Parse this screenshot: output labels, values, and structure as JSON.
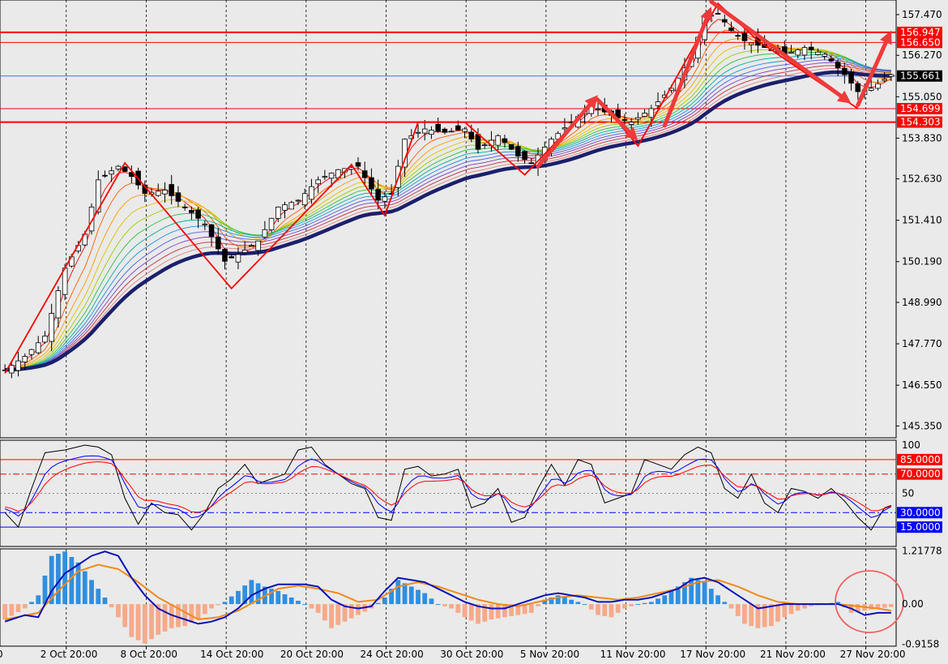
{
  "colors": {
    "background": "#eaeaea",
    "grid": "#000000",
    "candle_up": "#ffffff",
    "candle_down": "#000000",
    "support_resistance": "#ff0000",
    "current_price_line": "#4a6fd8",
    "slow_ma": "#1c1f6b",
    "zigzag": "#ff0000",
    "arrow": "#f03a3a",
    "rsi_black": "#000000",
    "rsi_blue": "#0000ff",
    "rsi_red": "#ff0000",
    "macd_hist_pos": "#2f8fe0",
    "macd_hist_neg": "#f7a98a",
    "macd_line": "#0b12b8",
    "signal_line": "#f08a1a",
    "circle": "#f06060",
    "label_red_bg": "#ff0000",
    "label_blue_bg": "#0000ff",
    "label_black_bg": "#000000"
  },
  "chart_data": [
    {
      "type": "candlestick",
      "title": "",
      "x_tick_labels": [
        "2 Oct 20:00",
        "8 Oct 20:00",
        "14 Oct 20:00",
        "20 Oct 20:00",
        "24 Oct 20:00",
        "30 Oct 20:00",
        "5 Nov 20:00",
        "11 Nov 20:00",
        "17 Nov 20:00",
        "21 Nov 20:00",
        "27 Nov 20:00"
      ],
      "x_tick_index": [
        8,
        20,
        32,
        44,
        56,
        68,
        80,
        92,
        104,
        116,
        128
      ],
      "x_cut_label": "0",
      "y_tick_labels": [
        "157.470",
        "156.270",
        "155.050",
        "153.830",
        "152.630",
        "151.410",
        "150.190",
        "148.990",
        "147.770",
        "146.550",
        "145.350"
      ],
      "ylim": [
        145.0,
        157.9
      ],
      "zigzag": [
        [
          0,
          146.9
        ],
        [
          18,
          153.1
        ],
        [
          34,
          149.4
        ],
        [
          52,
          153.05
        ],
        [
          57,
          151.55
        ],
        [
          62,
          154.3
        ],
        [
          69,
          154.3
        ],
        [
          78,
          152.75
        ],
        [
          89,
          155.0
        ],
        [
          95,
          153.6
        ],
        [
          107,
          157.8
        ],
        [
          113,
          156.7
        ],
        [
          128,
          154.7
        ]
      ],
      "arrows": [
        [
          [
            80,
            153.0
          ],
          [
            89,
            155.1
          ]
        ],
        [
          [
            89,
            154.95
          ],
          [
            95,
            153.75
          ]
        ],
        [
          [
            99,
            154.2
          ],
          [
            106,
            157.7
          ]
        ],
        [
          [
            106,
            157.85
          ],
          [
            127,
            154.85
          ]
        ],
        [
          [
            128,
            154.8
          ],
          [
            133,
            157.0
          ]
        ]
      ],
      "horizontal_levels": [
        {
          "label": "156.947",
          "value": 156.947,
          "style": "red-bold"
        },
        {
          "label": "156.650",
          "value": 156.65,
          "style": "red-thin"
        },
        {
          "label": "155.661",
          "value": 155.661,
          "style": "blue-current"
        },
        {
          "label": "154.699",
          "value": 154.699,
          "style": "red-thin"
        },
        {
          "label": "154.303",
          "value": 154.303,
          "style": "red-bold"
        }
      ],
      "last_price": "155.661",
      "anchors": [
        [
          0,
          147.0
        ],
        [
          3,
          147.4
        ],
        [
          6,
          148.0
        ],
        [
          9,
          150.0
        ],
        [
          12,
          151.0
        ],
        [
          14,
          152.6
        ],
        [
          17,
          153.0
        ],
        [
          19,
          152.7
        ],
        [
          21,
          152.2
        ],
        [
          24,
          152.3
        ],
        [
          27,
          151.8
        ],
        [
          30,
          151.3
        ],
        [
          33,
          150.2
        ],
        [
          35,
          150.4
        ],
        [
          38,
          150.8
        ],
        [
          41,
          151.8
        ],
        [
          44,
          152.0
        ],
        [
          47,
          152.6
        ],
        [
          50,
          152.9
        ],
        [
          53,
          153.0
        ],
        [
          56,
          152.0
        ],
        [
          58,
          152.2
        ],
        [
          60,
          153.8
        ],
        [
          63,
          154.1
        ],
        [
          66,
          154.0
        ],
        [
          69,
          154.1
        ],
        [
          71,
          153.5
        ],
        [
          74,
          153.9
        ],
        [
          77,
          153.3
        ],
        [
          79,
          153.1
        ],
        [
          82,
          153.8
        ],
        [
          85,
          154.3
        ],
        [
          88,
          154.8
        ],
        [
          91,
          154.5
        ],
        [
          94,
          154.3
        ],
        [
          97,
          154.7
        ],
        [
          100,
          155.3
        ],
        [
          103,
          156.2
        ],
        [
          105,
          157.4
        ],
        [
          107,
          157.5
        ],
        [
          109,
          157.0
        ],
        [
          111,
          156.7
        ],
        [
          114,
          156.5
        ],
        [
          117,
          156.3
        ],
        [
          120,
          156.5
        ],
        [
          123,
          156.3
        ],
        [
          126,
          155.7
        ],
        [
          128,
          155.2
        ],
        [
          130,
          155.3
        ],
        [
          133,
          155.7
        ]
      ],
      "candle_count": 134
    },
    {
      "type": "line",
      "indicator": "stochastic",
      "ylim": [
        0,
        100
      ],
      "y_tick_labels": [
        "100",
        "50"
      ],
      "levels": [
        {
          "label": "85.0000",
          "value": 85,
          "style": "red"
        },
        {
          "label": "70.0000",
          "value": 70,
          "style": "red-dash"
        },
        {
          "label": "30.0000",
          "value": 30,
          "style": "blue-dash"
        },
        {
          "label": "15.0000",
          "value": 15,
          "style": "blue"
        }
      ],
      "anchors": [
        [
          0,
          30
        ],
        [
          2,
          15
        ],
        [
          4,
          55
        ],
        [
          6,
          92
        ],
        [
          9,
          95
        ],
        [
          12,
          100
        ],
        [
          14,
          98
        ],
        [
          16,
          90
        ],
        [
          18,
          45
        ],
        [
          20,
          18
        ],
        [
          22,
          40
        ],
        [
          24,
          30
        ],
        [
          26,
          28
        ],
        [
          28,
          12
        ],
        [
          30,
          30
        ],
        [
          32,
          55
        ],
        [
          34,
          65
        ],
        [
          36,
          80
        ],
        [
          38,
          60
        ],
        [
          40,
          65
        ],
        [
          42,
          70
        ],
        [
          44,
          95
        ],
        [
          46,
          98
        ],
        [
          48,
          80
        ],
        [
          50,
          70
        ],
        [
          52,
          60
        ],
        [
          54,
          55
        ],
        [
          56,
          25
        ],
        [
          58,
          22
        ],
        [
          60,
          75
        ],
        [
          62,
          78
        ],
        [
          64,
          68
        ],
        [
          66,
          70
        ],
        [
          68,
          75
        ],
        [
          70,
          35
        ],
        [
          72,
          40
        ],
        [
          74,
          55
        ],
        [
          76,
          20
        ],
        [
          78,
          25
        ],
        [
          80,
          55
        ],
        [
          82,
          80
        ],
        [
          84,
          58
        ],
        [
          86,
          85
        ],
        [
          88,
          80
        ],
        [
          90,
          40
        ],
        [
          92,
          45
        ],
        [
          94,
          50
        ],
        [
          96,
          85
        ],
        [
          98,
          80
        ],
        [
          100,
          75
        ],
        [
          102,
          90
        ],
        [
          104,
          98
        ],
        [
          106,
          92
        ],
        [
          108,
          55
        ],
        [
          110,
          45
        ],
        [
          112,
          70
        ],
        [
          114,
          40
        ],
        [
          116,
          30
        ],
        [
          118,
          55
        ],
        [
          120,
          52
        ],
        [
          122,
          45
        ],
        [
          124,
          55
        ],
        [
          126,
          42
        ],
        [
          128,
          25
        ],
        [
          130,
          12
        ],
        [
          132,
          35
        ],
        [
          134,
          40
        ]
      ]
    },
    {
      "type": "bar",
      "indicator": "macd",
      "ylim": [
        -0.96,
        1.26
      ],
      "y_tick_labels": [
        "1.21778",
        "0.00",
        "-0.9158"
      ],
      "hist_anchors": [
        [
          0,
          -0.35
        ],
        [
          3,
          -0.1
        ],
        [
          5,
          0.2
        ],
        [
          7,
          1.1
        ],
        [
          9,
          1.2
        ],
        [
          11,
          0.95
        ],
        [
          13,
          0.55
        ],
        [
          15,
          0.15
        ],
        [
          17,
          -0.3
        ],
        [
          19,
          -0.75
        ],
        [
          21,
          -0.9
        ],
        [
          23,
          -0.7
        ],
        [
          25,
          -0.55
        ],
        [
          27,
          -0.5
        ],
        [
          29,
          -0.35
        ],
        [
          31,
          -0.1
        ],
        [
          33,
          0.05
        ],
        [
          35,
          0.3
        ],
        [
          37,
          0.55
        ],
        [
          39,
          0.4
        ],
        [
          41,
          0.3
        ],
        [
          43,
          0.15
        ],
        [
          45,
          0.0
        ],
        [
          47,
          -0.2
        ],
        [
          49,
          -0.55
        ],
        [
          51,
          -0.4
        ],
        [
          53,
          -0.25
        ],
        [
          55,
          -0.1
        ],
        [
          57,
          0.15
        ],
        [
          59,
          0.55
        ],
        [
          61,
          0.4
        ],
        [
          63,
          0.25
        ],
        [
          65,
          0.0
        ],
        [
          67,
          -0.1
        ],
        [
          69,
          -0.3
        ],
        [
          71,
          -0.45
        ],
        [
          73,
          -0.35
        ],
        [
          75,
          -0.3
        ],
        [
          77,
          -0.25
        ],
        [
          79,
          -0.2
        ],
        [
          81,
          0.1
        ],
        [
          83,
          0.2
        ],
        [
          85,
          0.1
        ],
        [
          87,
          0.0
        ],
        [
          89,
          -0.25
        ],
        [
          91,
          -0.3
        ],
        [
          93,
          -0.1
        ],
        [
          95,
          0.0
        ],
        [
          97,
          0.05
        ],
        [
          99,
          0.2
        ],
        [
          101,
          0.4
        ],
        [
          103,
          0.6
        ],
        [
          105,
          0.5
        ],
        [
          107,
          0.2
        ],
        [
          109,
          -0.1
        ],
        [
          111,
          -0.45
        ],
        [
          113,
          -0.55
        ],
        [
          115,
          -0.5
        ],
        [
          117,
          -0.3
        ],
        [
          119,
          -0.15
        ],
        [
          121,
          -0.05
        ],
        [
          123,
          0.0
        ],
        [
          125,
          0.05
        ],
        [
          127,
          -0.2
        ],
        [
          129,
          -0.15
        ],
        [
          131,
          -0.1
        ],
        [
          134,
          -0.05
        ]
      ],
      "macd_anchors": [
        [
          0,
          -0.4
        ],
        [
          3,
          -0.25
        ],
        [
          5,
          -0.3
        ],
        [
          7,
          0.3
        ],
        [
          9,
          0.7
        ],
        [
          11,
          0.9
        ],
        [
          13,
          1.1
        ],
        [
          15,
          1.2
        ],
        [
          17,
          1.1
        ],
        [
          19,
          0.6
        ],
        [
          21,
          0.2
        ],
        [
          23,
          -0.1
        ],
        [
          25,
          -0.25
        ],
        [
          27,
          -0.35
        ],
        [
          29,
          -0.45
        ],
        [
          31,
          -0.4
        ],
        [
          33,
          -0.3
        ],
        [
          35,
          -0.1
        ],
        [
          37,
          0.2
        ],
        [
          39,
          0.35
        ],
        [
          41,
          0.45
        ],
        [
          43,
          0.45
        ],
        [
          45,
          0.45
        ],
        [
          47,
          0.4
        ],
        [
          49,
          0.1
        ],
        [
          51,
          -0.05
        ],
        [
          53,
          -0.1
        ],
        [
          55,
          -0.05
        ],
        [
          57,
          0.3
        ],
        [
          59,
          0.6
        ],
        [
          61,
          0.55
        ],
        [
          63,
          0.5
        ],
        [
          65,
          0.35
        ],
        [
          67,
          0.2
        ],
        [
          69,
          0.05
        ],
        [
          71,
          -0.05
        ],
        [
          73,
          -0.1
        ],
        [
          75,
          -0.1
        ],
        [
          77,
          0.0
        ],
        [
          79,
          0.1
        ],
        [
          81,
          0.2
        ],
        [
          83,
          0.25
        ],
        [
          85,
          0.2
        ],
        [
          87,
          0.15
        ],
        [
          89,
          0.05
        ],
        [
          91,
          0.05
        ],
        [
          93,
          0.1
        ],
        [
          95,
          0.1
        ],
        [
          97,
          0.15
        ],
        [
          99,
          0.25
        ],
        [
          101,
          0.35
        ],
        [
          103,
          0.55
        ],
        [
          105,
          0.6
        ],
        [
          107,
          0.5
        ],
        [
          109,
          0.3
        ],
        [
          111,
          0.1
        ],
        [
          113,
          -0.1
        ],
        [
          115,
          -0.05
        ],
        [
          117,
          0.0
        ],
        [
          119,
          0.0
        ],
        [
          121,
          0.0
        ],
        [
          123,
          0.0
        ],
        [
          125,
          0.0
        ],
        [
          127,
          -0.1
        ],
        [
          129,
          -0.25
        ],
        [
          131,
          -0.2
        ],
        [
          133,
          -0.2
        ]
      ],
      "signal_anchors": [
        [
          0,
          -0.35
        ],
        [
          5,
          -0.2
        ],
        [
          8,
          0.3
        ],
        [
          11,
          0.75
        ],
        [
          14,
          0.9
        ],
        [
          17,
          0.8
        ],
        [
          20,
          0.5
        ],
        [
          23,
          0.15
        ],
        [
          26,
          -0.1
        ],
        [
          29,
          -0.35
        ],
        [
          32,
          -0.3
        ],
        [
          35,
          -0.15
        ],
        [
          38,
          0.1
        ],
        [
          41,
          0.35
        ],
        [
          44,
          0.42
        ],
        [
          47,
          0.35
        ],
        [
          50,
          0.25
        ],
        [
          53,
          0.05
        ],
        [
          56,
          0.1
        ],
        [
          59,
          0.4
        ],
        [
          62,
          0.5
        ],
        [
          65,
          0.4
        ],
        [
          68,
          0.25
        ],
        [
          71,
          0.1
        ],
        [
          74,
          0.0
        ],
        [
          77,
          -0.05
        ],
        [
          80,
          0.05
        ],
        [
          83,
          0.15
        ],
        [
          86,
          0.2
        ],
        [
          89,
          0.15
        ],
        [
          92,
          0.1
        ],
        [
          95,
          0.15
        ],
        [
          98,
          0.25
        ],
        [
          101,
          0.35
        ],
        [
          104,
          0.5
        ],
        [
          107,
          0.55
        ],
        [
          110,
          0.4
        ],
        [
          113,
          0.2
        ],
        [
          116,
          0.05
        ],
        [
          119,
          0.0
        ],
        [
          122,
          0.0
        ],
        [
          125,
          0.0
        ],
        [
          128,
          -0.05
        ],
        [
          131,
          -0.1
        ],
        [
          133,
          -0.15
        ]
      ]
    }
  ]
}
